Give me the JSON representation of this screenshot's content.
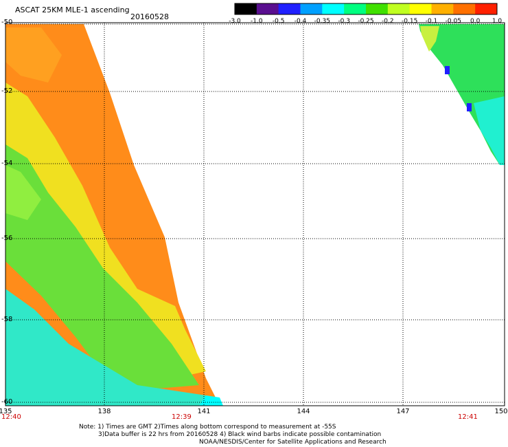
{
  "header": {
    "title": "ASCAT 25KM MLE-1 ascending",
    "date": "20160528"
  },
  "colorbar": {
    "ticks": [
      "-3.0",
      "-1.0",
      "-0.5",
      "-0.4",
      "-0.35",
      "-0.3",
      "-0.25",
      "-0.2",
      "-0.15",
      "-0.1",
      "-0.05",
      "0.0",
      "1.0"
    ],
    "colors": [
      "#000000",
      "#5a0f90",
      "#2020ff",
      "#00a0ff",
      "#00ffff",
      "#00ff80",
      "#40e000",
      "#c0ff20",
      "#ffff00",
      "#ffb000",
      "#ff7000",
      "#ff2000"
    ]
  },
  "map": {
    "lat_labels": [
      "-50",
      "-52",
      "-54",
      "-56",
      "-58",
      "-60"
    ],
    "lon_labels": [
      "135",
      "138",
      "141",
      "144",
      "147",
      "150"
    ],
    "time_labels": [
      "12:40",
      "12:39",
      "12:41"
    ]
  },
  "notes": {
    "line1": "Note: 1) Times are GMT 2)Times along bottom correspond to measurement at -55S",
    "line2": "3)Data buffer is 22 hrs from 20160528 4) Black wind barbs indicate possible contamination",
    "line3": "NOAA/NESDIS/Center for Satellite Applications and Research"
  }
}
